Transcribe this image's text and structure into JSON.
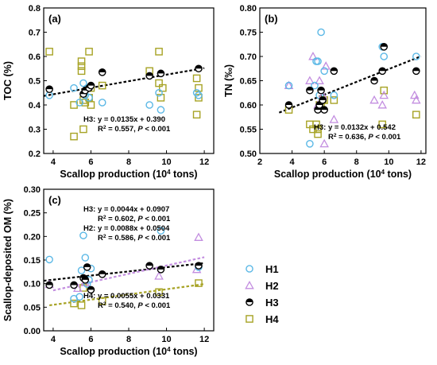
{
  "colors": {
    "H1": "#5bb8e6",
    "H2": "#c38ee0",
    "H3": "#000000",
    "H4": "#a7a325"
  },
  "legend": {
    "placement": "right-of-panel-c",
    "items": [
      "H1",
      "H2",
      "H3",
      "H4"
    ]
  },
  "chart_data": [
    {
      "panel": "(a)",
      "type": "scatter",
      "xlabel": "Scallop production (10",
      "xlabel_sup": "4",
      "xlabel_tail": " tons)",
      "ylabel": "TOC (%)",
      "xlim": [
        3.5,
        12.5
      ],
      "ylim": [
        0.2,
        0.8
      ],
      "xticks": [
        "4",
        "6",
        "8",
        "10",
        "12"
      ],
      "yticks": [
        "0.2",
        "0.3",
        "0.4",
        "0.5",
        "0.6",
        "0.7",
        "0.8"
      ],
      "series": [
        {
          "name": "H1",
          "marker": "circle",
          "points": [
            [
              3.8,
              0.44
            ],
            [
              5.1,
              0.47
            ],
            [
              5.4,
              0.41
            ],
            [
              5.6,
              0.49
            ],
            [
              5.7,
              0.44
            ],
            [
              5.8,
              0.47
            ],
            [
              5.9,
              0.43
            ],
            [
              6.6,
              0.41
            ],
            [
              9.1,
              0.4
            ],
            [
              9.6,
              0.45
            ],
            [
              9.7,
              0.38
            ],
            [
              11.6,
              0.45
            ],
            [
              11.7,
              0.44
            ]
          ]
        },
        {
          "name": "H3",
          "marker": "half-circle",
          "points": [
            [
              3.8,
              0.465
            ],
            [
              5.6,
              0.445
            ],
            [
              5.7,
              0.46
            ],
            [
              5.9,
              0.47
            ],
            [
              6.0,
              0.48
            ],
            [
              6.6,
              0.535
            ],
            [
              9.1,
              0.52
            ],
            [
              9.7,
              0.53
            ],
            [
              11.7,
              0.55
            ]
          ]
        },
        {
          "name": "H4",
          "marker": "square",
          "points": [
            [
              3.8,
              0.62
            ],
            [
              5.1,
              0.27
            ],
            [
              5.1,
              0.4
            ],
            [
              5.5,
              0.58
            ],
            [
              5.5,
              0.56
            ],
            [
              5.5,
              0.54
            ],
            [
              5.6,
              0.3
            ],
            [
              5.6,
              0.42
            ],
            [
              5.7,
              0.41
            ],
            [
              5.9,
              0.62
            ],
            [
              5.9,
              0.43
            ],
            [
              6.0,
              0.47
            ],
            [
              6.0,
              0.4
            ],
            [
              6.6,
              0.48
            ],
            [
              9.1,
              0.54
            ],
            [
              9.6,
              0.62
            ],
            [
              9.6,
              0.49
            ],
            [
              9.7,
              0.43
            ],
            [
              9.8,
              0.47
            ],
            [
              11.6,
              0.51
            ],
            [
              11.6,
              0.36
            ],
            [
              11.7,
              0.47
            ],
            [
              11.7,
              0.43
            ]
          ]
        }
      ],
      "trend": {
        "series": "H3",
        "color": "#000000",
        "slope": 0.0135,
        "intercept": 0.39,
        "x": [
          3.5,
          12.0
        ]
      },
      "annotations": [
        {
          "line1": "H3: y = 0.0135x + 0.390",
          "r2": "= 0.557, ",
          "p": " < 0.001"
        }
      ]
    },
    {
      "panel": "(b)",
      "type": "scatter",
      "xlabel": "Scallop production (10",
      "xlabel_sup": "4",
      "xlabel_tail": " tons)",
      "ylabel": "TN (‰)",
      "xlim": [
        2,
        12.3
      ],
      "ylim": [
        0.5,
        0.8
      ],
      "xticks": [
        "2",
        "4",
        "6",
        "8",
        "10",
        "12"
      ],
      "yticks": [
        "0.50",
        "0.55",
        "0.60",
        "0.65",
        "0.70",
        "0.75",
        "0.80"
      ],
      "series": [
        {
          "name": "H1",
          "marker": "circle",
          "points": [
            [
              3.8,
              0.64
            ],
            [
              5.1,
              0.52
            ],
            [
              5.4,
              0.64
            ],
            [
              5.5,
              0.69
            ],
            [
              5.6,
              0.69
            ],
            [
              5.7,
              0.62
            ],
            [
              5.8,
              0.75
            ],
            [
              6.0,
              0.67
            ],
            [
              6.6,
              0.62
            ],
            [
              9.6,
              0.72
            ],
            [
              9.7,
              0.7
            ],
            [
              11.7,
              0.7
            ]
          ]
        },
        {
          "name": "H2",
          "marker": "triangle",
          "points": [
            [
              3.8,
              0.64
            ],
            [
              5.1,
              0.65
            ],
            [
              5.3,
              0.7
            ],
            [
              5.6,
              0.6
            ],
            [
              5.7,
              0.65
            ],
            [
              5.9,
              0.62
            ],
            [
              6.0,
              0.52
            ],
            [
              6.1,
              0.68
            ],
            [
              6.6,
              0.57
            ],
            [
              9.1,
              0.61
            ],
            [
              9.6,
              0.6
            ],
            [
              9.7,
              0.62
            ],
            [
              11.6,
              0.62
            ],
            [
              11.7,
              0.61
            ]
          ]
        },
        {
          "name": "H3",
          "marker": "half-circle",
          "points": [
            [
              3.8,
              0.6
            ],
            [
              5.1,
              0.63
            ],
            [
              5.6,
              0.59
            ],
            [
              5.7,
              0.6
            ],
            [
              5.8,
              0.63
            ],
            [
              5.9,
              0.61
            ],
            [
              6.0,
              0.59
            ],
            [
              6.6,
              0.67
            ],
            [
              9.1,
              0.65
            ],
            [
              9.6,
              0.67
            ],
            [
              9.7,
              0.72
            ],
            [
              11.7,
              0.67
            ]
          ]
        },
        {
          "name": "H4",
          "marker": "square",
          "points": [
            [
              3.8,
              0.59
            ],
            [
              5.1,
              0.56
            ],
            [
              5.3,
              0.55
            ],
            [
              5.5,
              0.56
            ],
            [
              5.6,
              0.55
            ],
            [
              5.6,
              0.54
            ],
            [
              5.7,
              0.6
            ],
            [
              5.8,
              0.6
            ],
            [
              5.9,
              0.61
            ],
            [
              6.0,
              0.61
            ],
            [
              6.6,
              0.61
            ],
            [
              9.6,
              0.56
            ],
            [
              9.7,
              0.63
            ],
            [
              11.7,
              0.58
            ]
          ]
        }
      ],
      "trend": {
        "series": "H3",
        "color": "#000000",
        "slope": 0.0132,
        "intercept": 0.542,
        "x": [
          3.2,
          12.0
        ]
      },
      "annotations": [
        {
          "line1": "H3: y = 0.0132x + 0.542",
          "r2": "= 0.636, ",
          "p": " < 0.001"
        }
      ]
    },
    {
      "panel": "(c)",
      "type": "scatter",
      "xlabel": "Scallop production (10",
      "xlabel_sup": "4",
      "xlabel_tail": " tons)",
      "ylabel": "Scallop-deposited OM (%)",
      "xlim": [
        3.5,
        12.5
      ],
      "ylim": [
        0,
        0.3
      ],
      "xticks": [
        "4",
        "6",
        "8",
        "10",
        "12"
      ],
      "yticks": [
        "0.00",
        "0.05",
        "0.10",
        "0.15",
        "0.20",
        "0.25",
        "0.30"
      ],
      "series": [
        {
          "name": "H1",
          "marker": "circle",
          "points": [
            [
              3.8,
              0.151
            ],
            [
              5.1,
              0.068
            ],
            [
              5.4,
              0.072
            ],
            [
              5.5,
              0.128
            ],
            [
              5.6,
              0.202
            ],
            [
              5.7,
              0.155
            ],
            [
              5.8,
              0.099
            ],
            [
              5.9,
              0.108
            ],
            [
              6.0,
              0.132
            ],
            [
              9.7,
              0.212
            ],
            [
              11.7,
              0.135
            ]
          ]
        },
        {
          "name": "H2",
          "marker": "triangle",
          "points": [
            [
              3.8,
              0.098
            ],
            [
              5.3,
              0.09
            ],
            [
              5.7,
              0.102
            ],
            [
              9.6,
              0.116
            ],
            [
              11.6,
              0.13
            ],
            [
              11.7,
              0.198
            ]
          ]
        },
        {
          "name": "H3",
          "marker": "half-circle",
          "points": [
            [
              3.8,
              0.097
            ],
            [
              5.1,
              0.097
            ],
            [
              5.6,
              0.112
            ],
            [
              5.7,
              0.108
            ],
            [
              5.8,
              0.135
            ],
            [
              6.0,
              0.087
            ],
            [
              6.6,
              0.12
            ],
            [
              9.1,
              0.138
            ],
            [
              9.7,
              0.13
            ],
            [
              11.7,
              0.138
            ]
          ]
        },
        {
          "name": "H4",
          "marker": "square",
          "points": [
            [
              5.1,
              0.058
            ],
            [
              5.5,
              0.054
            ],
            [
              5.6,
              0.091
            ],
            [
              6.6,
              0.063
            ],
            [
              9.6,
              0.082
            ],
            [
              11.7,
              0.101
            ]
          ]
        }
      ],
      "trends": [
        {
          "series": "H3",
          "color": "#000000",
          "slope": 0.0044,
          "intercept": 0.0907,
          "x": [
            3.5,
            12.0
          ]
        },
        {
          "series": "H2",
          "color": "#c38ee0",
          "slope": 0.0088,
          "intercept": 0.0504,
          "x": [
            4.0,
            12.0
          ]
        },
        {
          "series": "H4",
          "color": "#a7a325",
          "slope": 0.0055,
          "intercept": 0.0331,
          "x": [
            3.8,
            12.0
          ]
        }
      ],
      "annotations": [
        {
          "line1": "H3: y = 0.0044x + 0.0907",
          "r2": "= 0.602, ",
          "p": " < 0.001"
        },
        {
          "line1": "H2: y = 0.0088x + 0.0504",
          "r2": "= 0.586, ",
          "p": " < 0.001"
        },
        {
          "line1": "H4: y = 0.0055x + 0.0331",
          "r2": "= 0.540, ",
          "p": " < 0.001"
        }
      ]
    }
  ]
}
